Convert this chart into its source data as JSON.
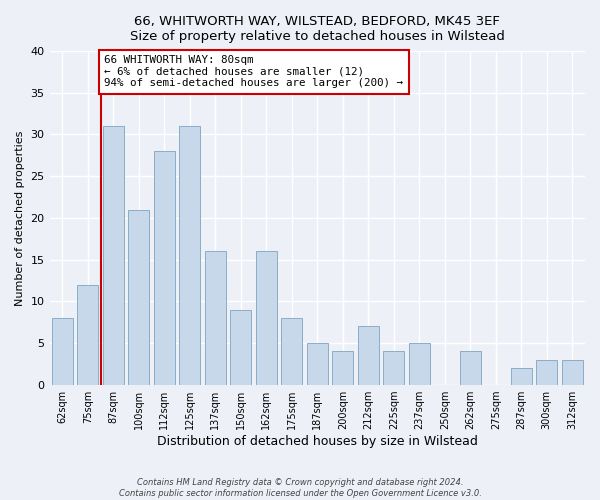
{
  "title1": "66, WHITWORTH WAY, WILSTEAD, BEDFORD, MK45 3EF",
  "title2": "Size of property relative to detached houses in Wilstead",
  "xlabel": "Distribution of detached houses by size in Wilstead",
  "ylabel": "Number of detached properties",
  "bar_labels": [
    "62sqm",
    "75sqm",
    "87sqm",
    "100sqm",
    "112sqm",
    "125sqm",
    "137sqm",
    "150sqm",
    "162sqm",
    "175sqm",
    "187sqm",
    "200sqm",
    "212sqm",
    "225sqm",
    "237sqm",
    "250sqm",
    "262sqm",
    "275sqm",
    "287sqm",
    "300sqm",
    "312sqm"
  ],
  "bar_values": [
    8,
    12,
    31,
    21,
    28,
    31,
    16,
    9,
    16,
    8,
    5,
    4,
    7,
    4,
    5,
    0,
    4,
    0,
    2,
    3,
    3
  ],
  "bar_color": "#c8d8eb",
  "bar_edgecolor": "#8aadc8",
  "background_color": "#edf1f7",
  "vline_x_index": 1.5,
  "vline_color": "#cc0000",
  "annotation_text": "66 WHITWORTH WAY: 80sqm\n← 6% of detached houses are smaller (12)\n94% of semi-detached houses are larger (200) →",
  "annotation_box_edgecolor": "#cc0000",
  "ylim": [
    0,
    40
  ],
  "yticks": [
    0,
    5,
    10,
    15,
    20,
    25,
    30,
    35,
    40
  ],
  "footer1": "Contains HM Land Registry data © Crown copyright and database right 2024.",
  "footer2": "Contains public sector information licensed under the Open Government Licence v3.0."
}
